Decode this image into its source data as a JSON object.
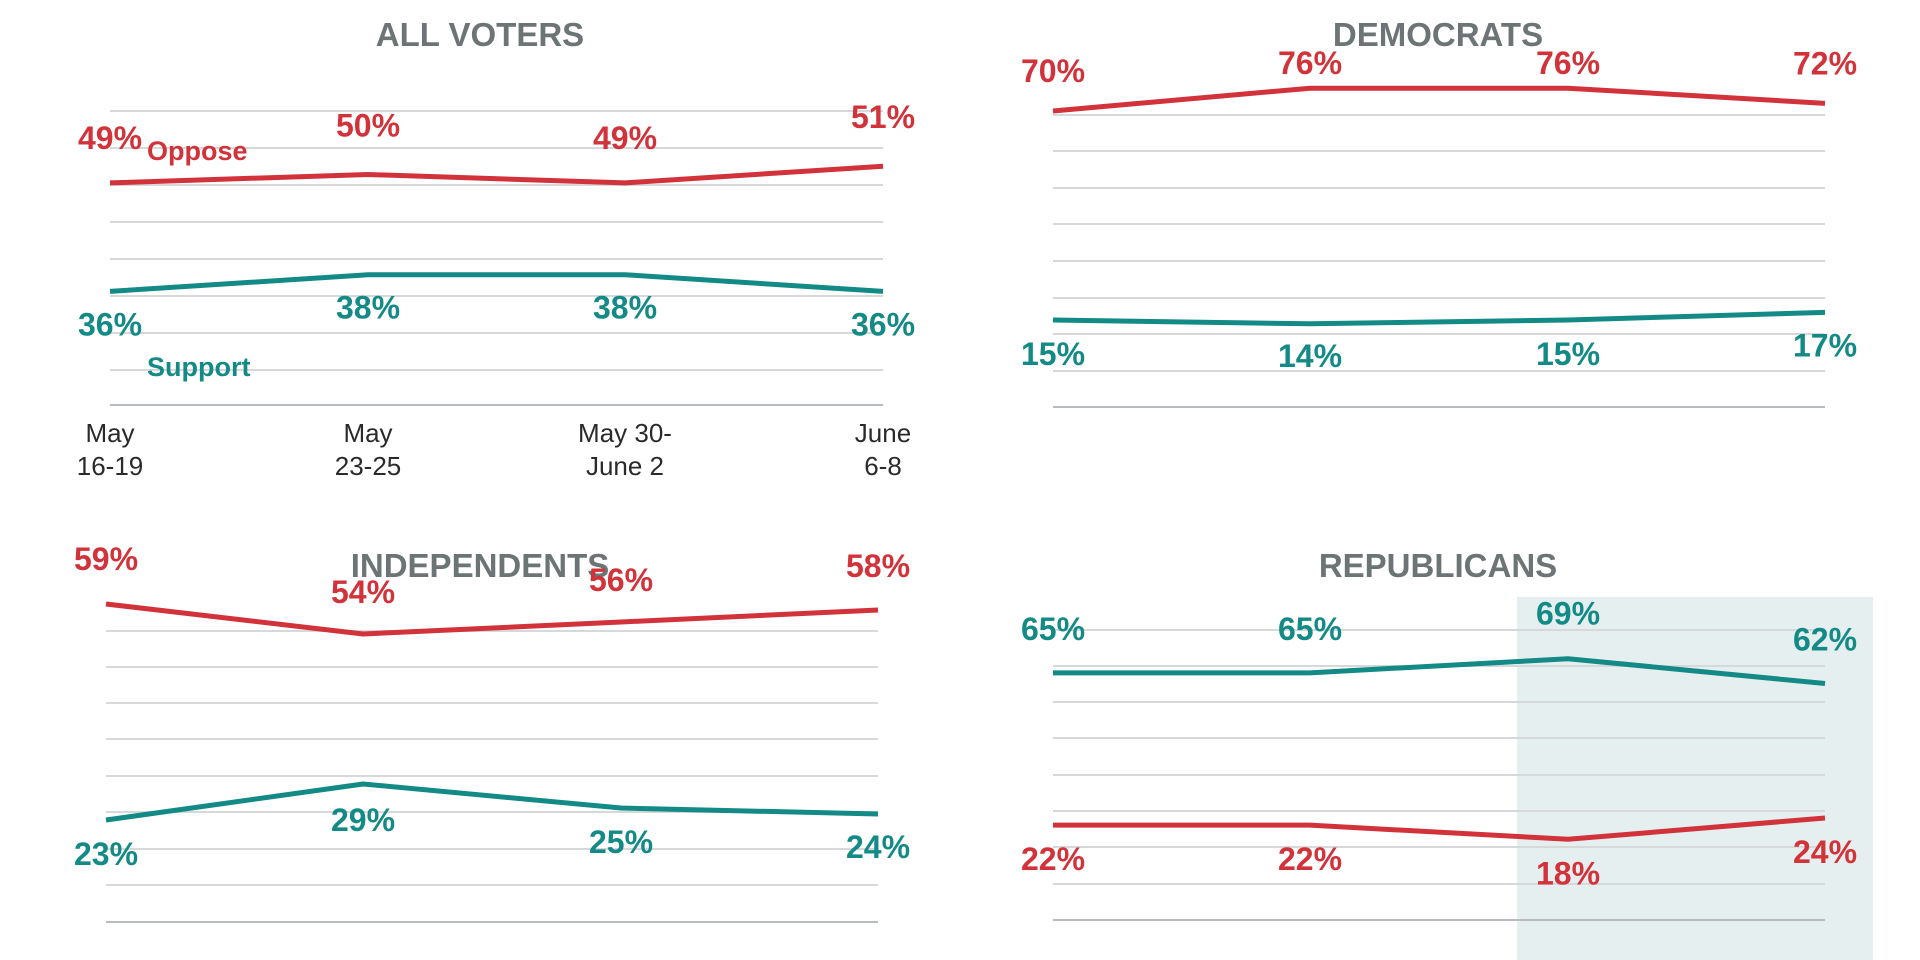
{
  "colors": {
    "oppose": "#d2323a",
    "support": "#138a86",
    "highlight": "#e6eff0",
    "title": "#6d7475"
  },
  "chart_data": [
    {
      "type": "line",
      "title": "ALL VOTERS",
      "categories": [
        "May\n16-19",
        "May\n23-25",
        "May 30-\nJune 2",
        "June\n6-8"
      ],
      "show_category_labels": true,
      "ylim": [
        0,
        100
      ],
      "series": [
        {
          "name": "Oppose",
          "key": "oppose",
          "values": [
            49,
            50,
            49,
            51
          ],
          "labels": [
            "49%",
            "50%",
            "49%",
            "51%"
          ]
        },
        {
          "name": "Support",
          "key": "support",
          "values": [
            36,
            38,
            38,
            36
          ],
          "labels": [
            "36%",
            "38%",
            "38%",
            "36%"
          ]
        }
      ]
    },
    {
      "type": "line",
      "title": "DEMOCRATS",
      "categories": [
        "May\n16-19",
        "May\n23-25",
        "May 30-\nJune 2",
        "June\n6-8"
      ],
      "show_category_labels": false,
      "ylim": [
        0,
        100
      ],
      "series": [
        {
          "key": "oppose",
          "values": [
            70,
            76,
            76,
            72
          ],
          "labels": [
            "70%",
            "76%",
            "76%",
            "72%"
          ]
        },
        {
          "key": "support",
          "values": [
            15,
            14,
            15,
            17
          ],
          "labels": [
            "15%",
            "14%",
            "15%",
            "17%"
          ]
        }
      ]
    },
    {
      "type": "line",
      "title": "INDEPENDENTS",
      "categories": [
        "May\n16-19",
        "May\n23-25",
        "May 30-\nJune 2",
        "June\n6-8"
      ],
      "show_category_labels": false,
      "ylim": [
        0,
        100
      ],
      "series": [
        {
          "key": "oppose",
          "values": [
            59,
            54,
            56,
            58
          ],
          "labels": [
            "59%",
            "54%",
            "56%",
            "58%"
          ]
        },
        {
          "key": "support",
          "values": [
            23,
            29,
            25,
            24
          ],
          "labels": [
            "23%",
            "29%",
            "25%",
            "24%"
          ]
        }
      ]
    },
    {
      "type": "line",
      "title": "REPUBLICANS",
      "categories": [
        "May\n16-19",
        "May\n23-25",
        "May 30-\nJune 2",
        "June\n6-8"
      ],
      "show_category_labels": false,
      "ylim": [
        0,
        100
      ],
      "highlight_from_category": 2,
      "series": [
        {
          "key": "support",
          "values": [
            65,
            65,
            69,
            62
          ],
          "labels": [
            "65%",
            "65%",
            "69%",
            "62%"
          ]
        },
        {
          "key": "oppose",
          "values": [
            22,
            22,
            18,
            24
          ],
          "labels": [
            "22%",
            "22%",
            "18%",
            "24%"
          ]
        }
      ]
    }
  ]
}
